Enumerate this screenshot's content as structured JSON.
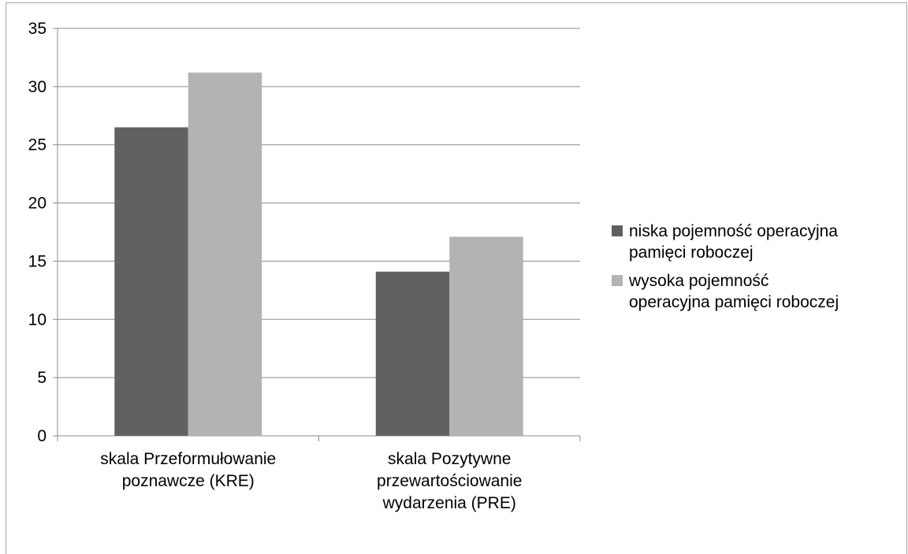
{
  "chart_data": {
    "type": "bar",
    "categories": [
      "skala Przeformułowanie\npoznawcze (KRE)",
      "skala Pozytywne\nprzewartościowanie\nwydarzenia (PRE)"
    ],
    "series": [
      {
        "name": "niska pojemność operacyjna pamięci roboczej",
        "color": "#616161",
        "values": [
          26.5,
          14.1
        ]
      },
      {
        "name": "wysoka pojemność operacyjna pamięci roboczej",
        "color": "#b3b3b3",
        "values": [
          31.2,
          17.1
        ]
      }
    ],
    "ylim": [
      0,
      35
    ],
    "yticks": [
      "0",
      "5",
      "10",
      "15",
      "20",
      "25",
      "30",
      "35"
    ],
    "grid": true,
    "legend_position": "right"
  },
  "legend": {
    "items": [
      {
        "label": "niska pojemność operacyjna\npamięci roboczej"
      },
      {
        "label": "wysoka pojemność\noperacyjna pamięci roboczej"
      }
    ]
  }
}
